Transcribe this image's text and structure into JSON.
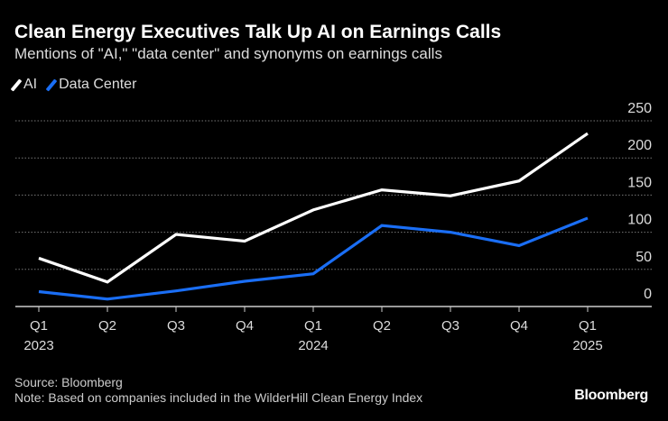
{
  "chart_data": {
    "type": "line",
    "title": "Clean Energy Executives Talk Up AI on Earnings Calls",
    "subtitle": "Mentions of \"AI,\" \"data center\" and synonyms on earnings calls",
    "categories": [
      [
        "Q1",
        "2023"
      ],
      [
        "Q2",
        ""
      ],
      [
        "Q3",
        ""
      ],
      [
        "Q4",
        ""
      ],
      [
        "Q1",
        "2024"
      ],
      [
        "Q2",
        ""
      ],
      [
        "Q3",
        ""
      ],
      [
        "Q4",
        ""
      ],
      [
        "Q1",
        "2025"
      ]
    ],
    "series": [
      {
        "name": "AI",
        "color": "#ffffff",
        "values": [
          65,
          33,
          97,
          88,
          130,
          157,
          149,
          169,
          233
        ]
      },
      {
        "name": "Data Center",
        "color": "#1a6ef5",
        "values": [
          20,
          10,
          21,
          34,
          44,
          109,
          100,
          82,
          119
        ]
      }
    ],
    "ylim": [
      0,
      250
    ],
    "yticks": [
      0,
      50,
      100,
      150,
      200,
      250
    ],
    "grid": true,
    "legend": "top-left",
    "yaxis_side": "right"
  },
  "footer": {
    "source": "Source: Bloomberg",
    "note": "Note: Based on companies included in the WilderHill Clean Energy Index",
    "logo": "Bloomberg"
  }
}
